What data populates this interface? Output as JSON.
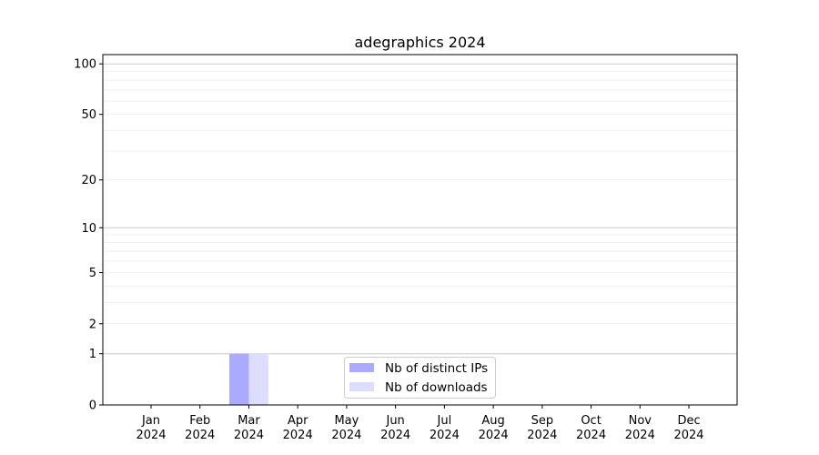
{
  "chart_data": {
    "type": "bar",
    "title": "adegraphics 2024",
    "xlabel": "",
    "ylabel": "",
    "y_scale": "symlog",
    "ylim": [
      0,
      114
    ],
    "y_ticks": [
      0,
      1,
      2,
      5,
      10,
      20,
      50,
      100
    ],
    "y_tick_labels": [
      "0",
      "1",
      "2",
      "5",
      "10",
      "20",
      "50",
      "100"
    ],
    "grid": true,
    "legend_position": "bottom-center",
    "categories": [
      "Jan\n2024",
      "Feb\n2024",
      "Mar\n2024",
      "Apr\n2024",
      "May\n2024",
      "Jun\n2024",
      "Jul\n2024",
      "Aug\n2024",
      "Sep\n2024",
      "Oct\n2024",
      "Nov\n2024",
      "Dec\n2024"
    ],
    "x_tick_labels": [
      [
        "Jan",
        "2024"
      ],
      [
        "Feb",
        "2024"
      ],
      [
        "Mar",
        "2024"
      ],
      [
        "Apr",
        "2024"
      ],
      [
        "May",
        "2024"
      ],
      [
        "Jun",
        "2024"
      ],
      [
        "Jul",
        "2024"
      ],
      [
        "Aug",
        "2024"
      ],
      [
        "Sep",
        "2024"
      ],
      [
        "Oct",
        "2024"
      ],
      [
        "Nov",
        "2024"
      ],
      [
        "Dec",
        "2024"
      ]
    ],
    "series": [
      {
        "name": "Nb of distinct IPs",
        "color": "#aaaaff",
        "values": [
          0,
          0,
          1,
          0,
          0,
          0,
          0,
          0,
          0,
          0,
          0,
          0
        ]
      },
      {
        "name": "Nb of downloads",
        "color": "#ddddff",
        "values": [
          0,
          0,
          1,
          0,
          0,
          0,
          0,
          0,
          0,
          0,
          0,
          0
        ]
      }
    ]
  }
}
